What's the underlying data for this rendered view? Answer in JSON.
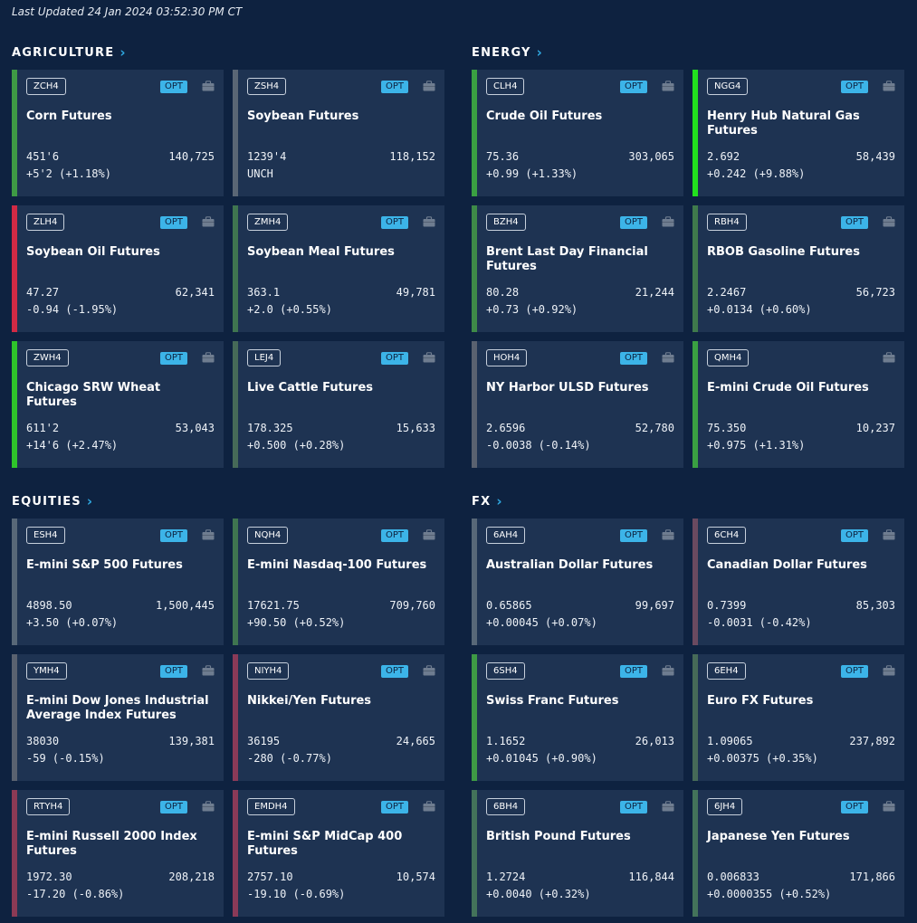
{
  "last_updated": "Last Updated 24 Jan 2024 03:52:30 PM CT",
  "colors": {
    "background": "#0e2240",
    "card": "#1e3352",
    "opt_badge": "#3cb4e8",
    "link_chevron": "#2fa8e0",
    "up_small": "#3e9a45",
    "up_large": "#22e01e",
    "down": "#d12a45",
    "unch": "#5a6675"
  },
  "sections": [
    {
      "title": "AGRICULTURE",
      "cards": [
        {
          "symbol": "ZCH4",
          "opt": "OPT",
          "name": "Corn Futures",
          "last": "451'6",
          "volume": "140,725",
          "change": "+5'2 (+1.18%)",
          "bar_color": "#3e9a45"
        },
        {
          "symbol": "ZSH4",
          "opt": "OPT",
          "name": "Soybean Futures",
          "last": "1239'4",
          "volume": "118,152",
          "change": "UNCH",
          "bar_color": "#5a6675"
        },
        {
          "symbol": "ZLH4",
          "opt": "OPT",
          "name": "Soybean Oil Futures",
          "last": "47.27",
          "volume": "62,341",
          "change": "-0.94 (-1.95%)",
          "bar_color": "#d12a45"
        },
        {
          "symbol": "ZMH4",
          "opt": "OPT",
          "name": "Soybean Meal Futures",
          "last": "363.1",
          "volume": "49,781",
          "change": "+2.0 (+0.55%)",
          "bar_color": "#3f7550"
        },
        {
          "symbol": "ZWH4",
          "opt": "OPT",
          "name": "Chicago SRW Wheat Futures",
          "last": "611'2",
          "volume": "53,043",
          "change": "+14'6 (+2.47%)",
          "bar_color": "#2ec42a"
        },
        {
          "symbol": "LEJ4",
          "opt": "OPT",
          "name": "Live Cattle Futures",
          "last": "178.325",
          "volume": "15,633",
          "change": "+0.500 (+0.28%)",
          "bar_color": "#466a58"
        }
      ]
    },
    {
      "title": "ENERGY",
      "cards": [
        {
          "symbol": "CLH4",
          "opt": "OPT",
          "name": "Crude Oil Futures",
          "last": "75.36",
          "volume": "303,065",
          "change": "+0.99 (+1.33%)",
          "bar_color": "#3aa042"
        },
        {
          "symbol": "NGG4",
          "opt": "OPT",
          "name": "Henry Hub Natural Gas Futures",
          "last": "2.692",
          "volume": "58,439",
          "change": "+0.242 (+9.88%)",
          "bar_color": "#22e01e"
        },
        {
          "symbol": "BZH4",
          "opt": "OPT",
          "name": "Brent Last Day Financial Futures",
          "last": "80.28",
          "volume": "21,244",
          "change": "+0.73 (+0.92%)",
          "bar_color": "#3e8a48"
        },
        {
          "symbol": "RBH4",
          "opt": "OPT",
          "name": "RBOB Gasoline Futures",
          "last": "2.2467",
          "volume": "56,723",
          "change": "+0.0134 (+0.60%)",
          "bar_color": "#3f7a4c"
        },
        {
          "symbol": "HOH4",
          "opt": "OPT",
          "name": "NY Harbor ULSD Futures",
          "last": "2.6596",
          "volume": "52,780",
          "change": "-0.0038 (-0.14%)",
          "bar_color": "#5a6270"
        },
        {
          "symbol": "QMH4",
          "opt": "",
          "name": "E-mini Crude Oil Futures",
          "last": "75.350",
          "volume": "10,237",
          "change": "+0.975 (+1.31%)",
          "bar_color": "#3aa042"
        }
      ]
    },
    {
      "title": "EQUITIES",
      "cards": [
        {
          "symbol": "ESH4",
          "opt": "OPT",
          "name": "E-mini S&P 500 Futures",
          "last": "4898.50",
          "volume": "1,500,445",
          "change": "+3.50 (+0.07%)",
          "bar_color": "#586878"
        },
        {
          "symbol": "NQH4",
          "opt": "OPT",
          "name": "E-mini Nasdaq-100 Futures",
          "last": "17621.75",
          "volume": "709,760",
          "change": "+90.50 (+0.52%)",
          "bar_color": "#3f7550"
        },
        {
          "symbol": "YMH4",
          "opt": "OPT",
          "name": "E-mini Dow Jones Industrial Average Index Futures",
          "last": "38030",
          "volume": "139,381",
          "change": "-59 (-0.15%)",
          "bar_color": "#5a6270"
        },
        {
          "symbol": "NIYH4",
          "opt": "OPT",
          "name": "Nikkei/Yen Futures",
          "last": "36195",
          "volume": "24,665",
          "change": "-280 (-0.77%)",
          "bar_color": "#8a3a58"
        },
        {
          "symbol": "RTYH4",
          "opt": "OPT",
          "name": "E-mini  Russell 2000 Index Futures",
          "last": "1972.30",
          "volume": "208,218",
          "change": "-17.20 (-0.86%)",
          "bar_color": "#8c3a55"
        },
        {
          "symbol": "EMDH4",
          "opt": "OPT",
          "name": "E-mini S&P MidCap 400 Futures",
          "last": "2757.10",
          "volume": "10,574",
          "change": "-19.10 (-0.69%)",
          "bar_color": "#8a3a58"
        }
      ]
    },
    {
      "title": "FX",
      "cards": [
        {
          "symbol": "6AH4",
          "opt": "OPT",
          "name": "Australian Dollar Futures",
          "last": "0.65865",
          "volume": "99,697",
          "change": "+0.00045 (+0.07%)",
          "bar_color": "#586878"
        },
        {
          "symbol": "6CH4",
          "opt": "OPT",
          "name": "Canadian Dollar Futures",
          "last": "0.7399",
          "volume": "85,303",
          "change": "-0.0031 (-0.42%)",
          "bar_color": "#6a4a60"
        },
        {
          "symbol": "6SH4",
          "opt": "OPT",
          "name": "Swiss Franc Futures",
          "last": "1.1652",
          "volume": "26,013",
          "change": "+0.01045 (+0.90%)",
          "bar_color": "#3e9a45"
        },
        {
          "symbol": "6EH4",
          "opt": "OPT",
          "name": "Euro FX Futures",
          "last": "1.09065",
          "volume": "237,892",
          "change": "+0.00375 (+0.35%)",
          "bar_color": "#466a58"
        },
        {
          "symbol": "6BH4",
          "opt": "OPT",
          "name": "British Pound Futures",
          "last": "1.2724",
          "volume": "116,844",
          "change": "+0.0040 (+0.32%)",
          "bar_color": "#43735a"
        },
        {
          "symbol": "6JH4",
          "opt": "OPT",
          "name": "Japanese Yen Futures",
          "last": "0.006833",
          "volume": "171,866",
          "change": "+0.0000355 (+0.52%)",
          "bar_color": "#43735a"
        }
      ]
    }
  ]
}
